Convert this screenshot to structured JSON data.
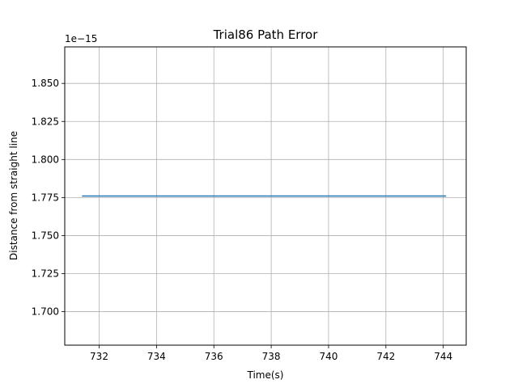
{
  "chart_data": {
    "type": "line",
    "title": "Trial86 Path Error",
    "xlabel": "Time(s)",
    "ylabel": "Distance from straight line",
    "offset_label": "1e−15",
    "xlim": [
      730.8,
      744.8
    ],
    "ylim": [
      1.678,
      1.874
    ],
    "x_ticks": [
      732,
      734,
      736,
      738,
      740,
      742,
      744
    ],
    "y_ticks": [
      1.7,
      1.725,
      1.75,
      1.775,
      1.8,
      1.825,
      1.85
    ],
    "y_tick_labels": [
      "1.700",
      "1.725",
      "1.750",
      "1.775",
      "1.800",
      "1.825",
      "1.850"
    ],
    "grid": true,
    "series": [
      {
        "color": "#1f77b4",
        "x": [
          731.4,
          744.1
        ],
        "y": [
          1.776,
          1.776
        ]
      }
    ]
  }
}
